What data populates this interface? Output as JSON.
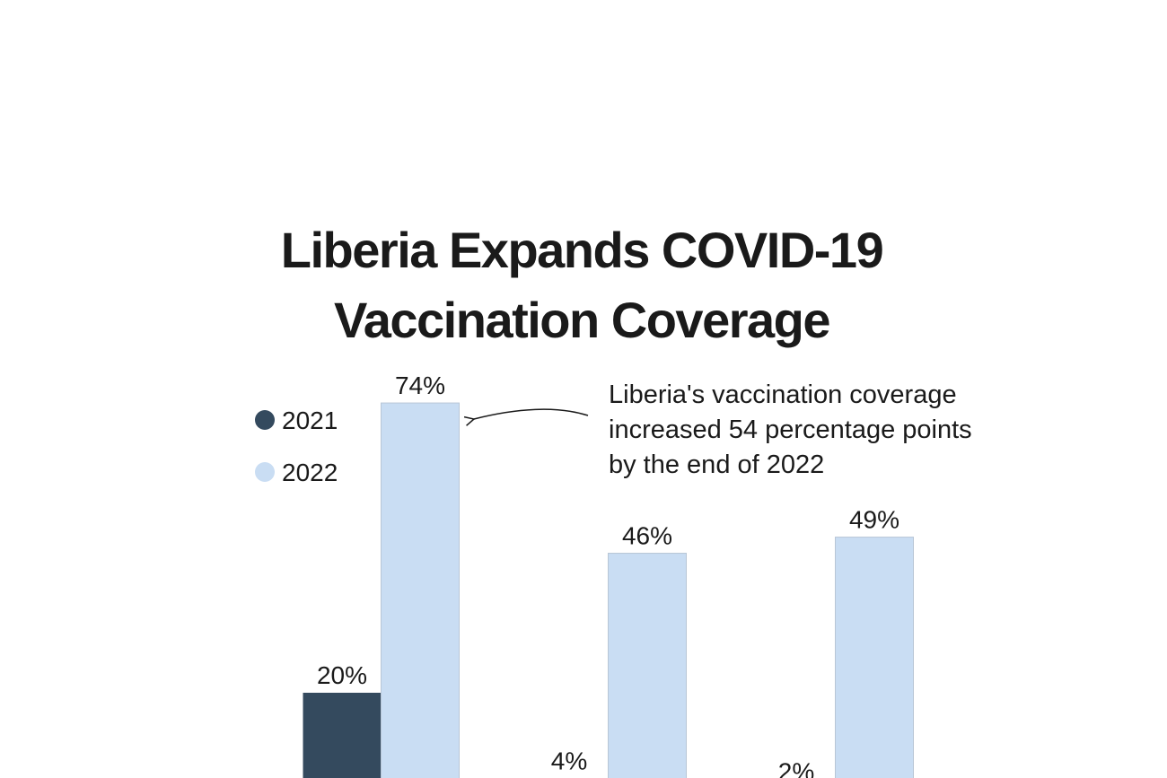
{
  "chart_data": {
    "type": "bar",
    "title": "Liberia Expands COVID-19 Vaccination Coverage",
    "categories": [
      null,
      null,
      null
    ],
    "series": [
      {
        "name": "2021",
        "color": "#344a5e",
        "values": [
          20,
          4,
          2
        ],
        "value_labels": [
          "20%",
          "4%",
          "2%"
        ]
      },
      {
        "name": "2022",
        "color": "#c9ddf3",
        "values": [
          74,
          46,
          49
        ],
        "value_labels": [
          "74%",
          "46%",
          "49%"
        ]
      }
    ],
    "annotation": [
      "Liberia's vaccination coverage",
      "increased 54 percentage points",
      "by the end of 2022"
    ]
  }
}
